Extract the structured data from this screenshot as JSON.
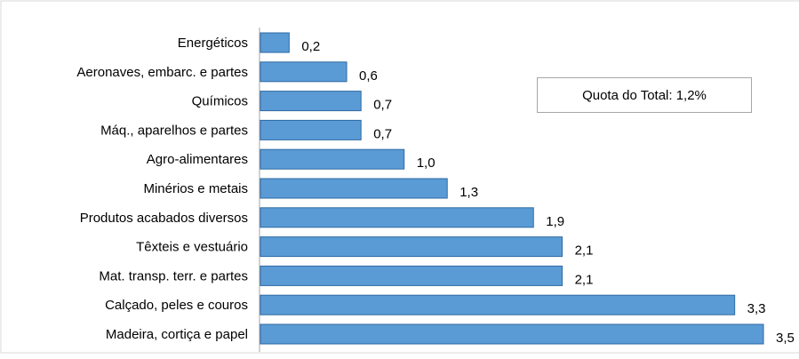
{
  "chart_data": {
    "type": "bar",
    "orientation": "horizontal",
    "categories": [
      "Energéticos",
      "Aeronaves, embarc. e partes",
      "Químicos",
      "Máq., aparelhos e partes",
      "Agro-alimentares",
      "Minérios e metais",
      "Produtos acabados diversos",
      "Têxteis e vestuário",
      "Mat. transp. terr. e partes",
      "Calçado, peles e couros",
      "Madeira, cortiça e papel"
    ],
    "values": [
      0.2,
      0.6,
      0.7,
      0.7,
      1.0,
      1.3,
      1.9,
      2.1,
      2.1,
      3.3,
      3.5
    ],
    "value_labels": [
      "0,2",
      "0,6",
      "0,7",
      "0,7",
      "1,0",
      "1,3",
      "1,9",
      "2,1",
      "2,1",
      "3,3",
      "3,5"
    ],
    "xlim": [
      0,
      3.5
    ],
    "grid": false,
    "bar_color": "#5b9bd5",
    "bar_edge_color": "#2e6aa3",
    "annotation": "Quota do Total: 1,2%"
  }
}
